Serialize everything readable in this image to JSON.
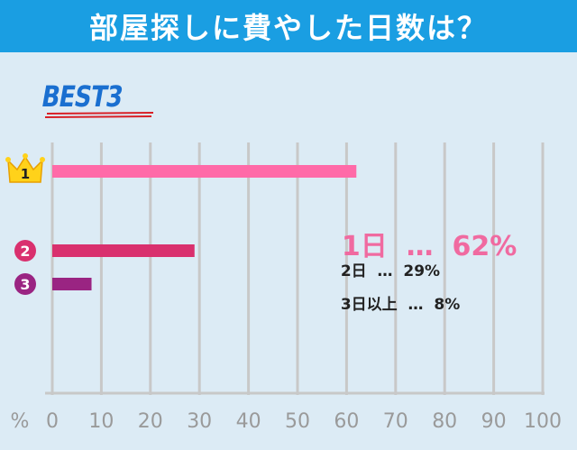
{
  "title": "部屋探しに費やした日数は？",
  "badge": "BEST3",
  "colors": {
    "title_bg": "#1a9ee2",
    "background": "#dcebf5",
    "grid": "#c8c8c8",
    "rank1": "#ff6aa8",
    "rank2": "#d9306e",
    "rank3": "#9a2482",
    "badge": "#1a6fd0",
    "badge_underline": "#d81f26"
  },
  "ranks": [
    {
      "rank_label": "1",
      "icon": "crown-icon",
      "name": "1日",
      "value_text": "62%",
      "separator": "…"
    },
    {
      "rank_label": "2",
      "icon": "number-circle-icon",
      "name": "2日",
      "value_text": "29%",
      "separator": "…"
    },
    {
      "rank_label": "3",
      "icon": "number-circle-icon",
      "name": "3日以上",
      "value_text": "8%",
      "separator": "…"
    }
  ],
  "chart_data": {
    "type": "bar",
    "orientation": "horizontal",
    "title": "部屋探しに費やした日数は？",
    "categories": [
      "1日",
      "2日",
      "3日以上"
    ],
    "values": [
      62,
      29,
      8
    ],
    "xlabel": "%",
    "xlim": [
      0,
      100
    ],
    "xticks": [
      0,
      10,
      20,
      30,
      40,
      50,
      60,
      70,
      80,
      90,
      100
    ],
    "grid": true
  }
}
